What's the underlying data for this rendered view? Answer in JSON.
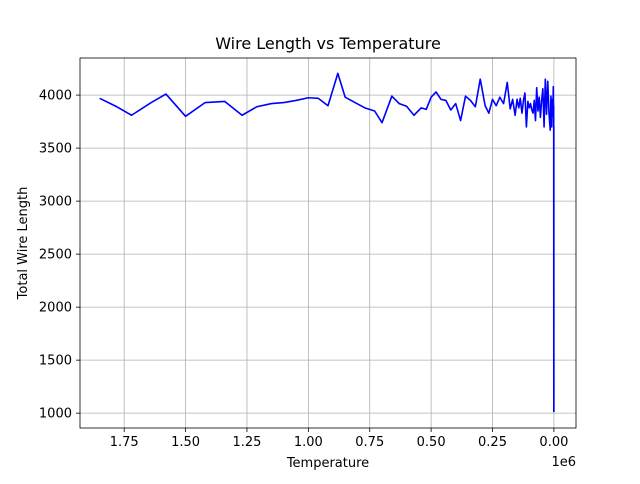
{
  "chart_data": {
    "type": "line",
    "title": "Wire Length vs Temperature",
    "xlabel": "Temperature",
    "ylabel": "Total Wire Length",
    "x_offset_label": "1e6",
    "x_axis_inverted": true,
    "xlim": [
      1930000,
      -90000
    ],
    "ylim": [
      860,
      4350
    ],
    "grid": true,
    "line_color": "#0000ff",
    "x_ticks": [
      {
        "value": 1750000,
        "label": "1.75"
      },
      {
        "value": 1500000,
        "label": "1.50"
      },
      {
        "value": 1250000,
        "label": "1.25"
      },
      {
        "value": 1000000,
        "label": "1.00"
      },
      {
        "value": 750000,
        "label": "0.75"
      },
      {
        "value": 500000,
        "label": "0.50"
      },
      {
        "value": 250000,
        "label": "0.25"
      },
      {
        "value": 0,
        "label": "0.00"
      }
    ],
    "y_ticks": [
      {
        "value": 1000,
        "label": "1000"
      },
      {
        "value": 1500,
        "label": "1500"
      },
      {
        "value": 2000,
        "label": "2000"
      },
      {
        "value": 2500,
        "label": "2500"
      },
      {
        "value": 3000,
        "label": "3000"
      },
      {
        "value": 3500,
        "label": "3500"
      },
      {
        "value": 4000,
        "label": "4000"
      }
    ],
    "series": [
      {
        "color": "#0000ff",
        "x": [
          1850000,
          1780000,
          1720000,
          1640000,
          1580000,
          1500000,
          1420000,
          1340000,
          1270000,
          1210000,
          1150000,
          1100000,
          1050000,
          1000000,
          960000,
          920000,
          880000,
          850000,
          810000,
          770000,
          730000,
          700000,
          660000,
          630000,
          600000,
          570000,
          540000,
          520000,
          500000,
          480000,
          460000,
          440000,
          420000,
          400000,
          380000,
          360000,
          340000,
          320000,
          300000,
          280000,
          265000,
          250000,
          235000,
          220000,
          205000,
          190000,
          178000,
          168000,
          158000,
          150000,
          143000,
          137000,
          130000,
          124000,
          118000,
          112000,
          106000,
          100000,
          95000,
          90000,
          85000,
          80000,
          75000,
          70000,
          65000,
          60000,
          55000,
          50000,
          45000,
          40000,
          35000,
          30000,
          25000,
          20000,
          15000,
          12000,
          9000,
          6000,
          4000,
          2500,
          1500,
          800,
          400,
          200,
          100
        ],
        "y": [
          3970,
          3890,
          3810,
          3930,
          4010,
          3800,
          3930,
          3940,
          3810,
          3890,
          3920,
          3930,
          3950,
          3975,
          3970,
          3900,
          4205,
          3980,
          3930,
          3880,
          3850,
          3740,
          3990,
          3920,
          3895,
          3810,
          3880,
          3865,
          3980,
          4030,
          3960,
          3950,
          3860,
          3920,
          3760,
          3990,
          3950,
          3890,
          4150,
          3900,
          3830,
          3960,
          3900,
          3980,
          3920,
          4120,
          3870,
          3960,
          3810,
          3960,
          3880,
          3970,
          3830,
          3950,
          4020,
          3700,
          3940,
          3880,
          3920,
          3860,
          3830,
          3950,
          3760,
          4070,
          3850,
          3980,
          3790,
          3950,
          4060,
          3700,
          4150,
          3820,
          4130,
          3830,
          3670,
          3990,
          3700,
          3960,
          3820,
          4080,
          3800,
          3900,
          1020,
          3700,
          1010
        ]
      }
    ]
  }
}
